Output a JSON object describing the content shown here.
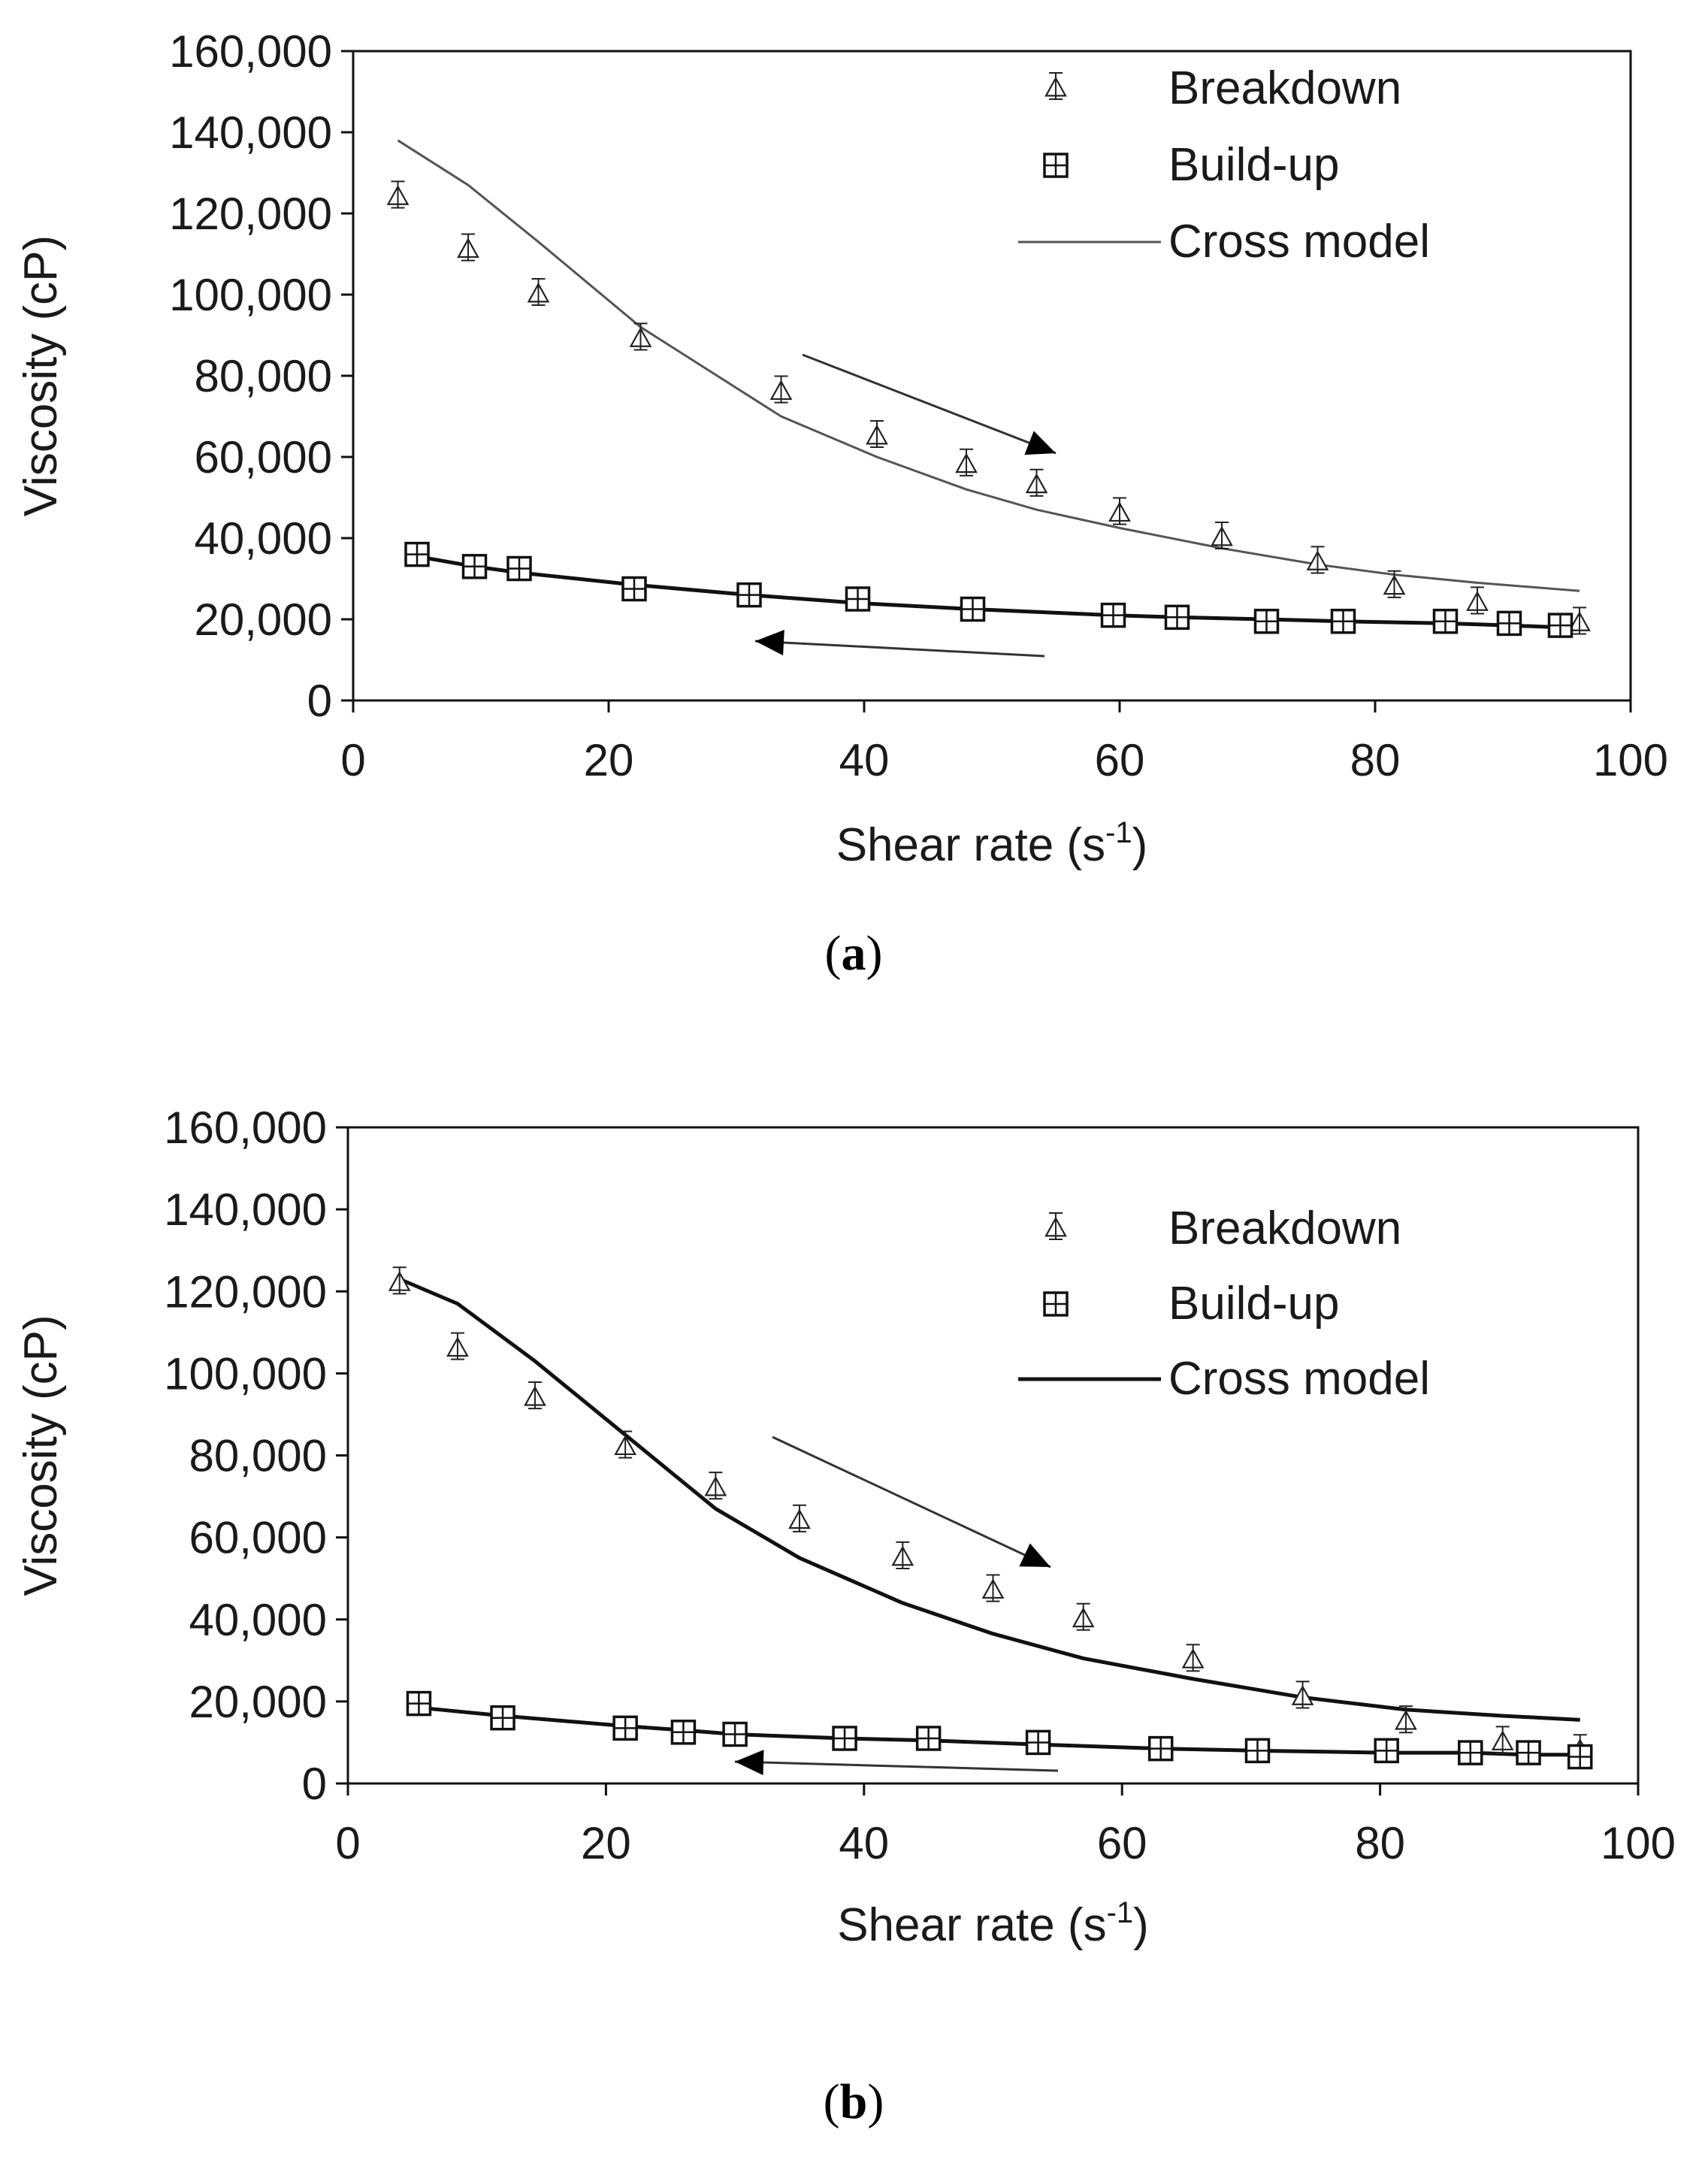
{
  "chart_data": [
    {
      "type": "scatter",
      "caption_letter": "a",
      "caption_open": "(",
      "caption_close": ")",
      "xlabel": "Shear rate (s",
      "xlabel_sup": "-1",
      "xlabel_close": ")",
      "ylabel": "Viscosity (cP)",
      "xlim": [
        0,
        100
      ],
      "ylim": [
        0,
        160000
      ],
      "xticks": [
        "0",
        "20",
        "40",
        "60",
        "80",
        "100"
      ],
      "yticks": [
        "0",
        "20,000",
        "40,000",
        "60,000",
        "80,000",
        "100,000",
        "120,000",
        "140,000",
        "160,000"
      ],
      "legend": [
        "Breakdown",
        "Build-up",
        "Cross model"
      ],
      "series": [
        {
          "name": "Breakdown",
          "marker": "triangle",
          "x": [
            3.5,
            9,
            14.5,
            22.5,
            33.5,
            41,
            48,
            53.5,
            60,
            68,
            75.5,
            81.5,
            88,
            96
          ],
          "y": [
            124000,
            111000,
            100000,
            89000,
            76000,
            65000,
            58000,
            53000,
            46000,
            40000,
            34000,
            28000,
            24000,
            19000
          ]
        },
        {
          "name": "Build-up",
          "marker": "square",
          "x": [
            5,
            9.5,
            13,
            22,
            31,
            39.5,
            48.5,
            59.5,
            64.5,
            71.5,
            77.5,
            85.5,
            90.5,
            94.5
          ],
          "y": [
            36000,
            33000,
            32500,
            27500,
            26000,
            25000,
            22500,
            21000,
            20500,
            19500,
            19500,
            19500,
            19000,
            18500
          ]
        },
        {
          "name": "Cross model",
          "line": "thin",
          "x": [
            3.5,
            9,
            14.5,
            22.5,
            33.5,
            41,
            48,
            53.5,
            60,
            68,
            75.5,
            81.5,
            88,
            96
          ],
          "y": [
            138000,
            127000,
            113000,
            92000,
            70000,
            60000,
            52000,
            47000,
            42500,
            37500,
            33500,
            31000,
            29000,
            27000
          ]
        },
        {
          "name": "Build-up fit",
          "line": "thick",
          "x": [
            5,
            9.5,
            13,
            22,
            31,
            39.5,
            48.5,
            59.5,
            64.5,
            71.5,
            77.5,
            85.5,
            90.5,
            94.5
          ],
          "y": [
            35500,
            33000,
            31500,
            28500,
            26000,
            24000,
            22500,
            21000,
            20500,
            20000,
            19500,
            19000,
            18500,
            18000
          ]
        }
      ]
    },
    {
      "type": "scatter",
      "caption_letter": "b",
      "caption_open": "(",
      "caption_close": ")",
      "xlabel": "Shear rate (s",
      "xlabel_sup": "-1",
      "xlabel_close": ")",
      "ylabel": "Viscosity (cP)",
      "xlim": [
        0,
        100
      ],
      "ylim": [
        0,
        160000
      ],
      "xticks": [
        "0",
        "20",
        "40",
        "60",
        "80",
        "100"
      ],
      "yticks": [
        "0",
        "20,000",
        "40,000",
        "60,000",
        "80,000",
        "100,000",
        "120,000",
        "140,000",
        "160,000"
      ],
      "legend": [
        "Breakdown",
        "Build-up",
        "Cross model"
      ],
      "series": [
        {
          "name": "Breakdown",
          "marker": "triangle",
          "x": [
            4,
            8.5,
            14.5,
            21.5,
            28.5,
            35,
            43,
            50,
            57,
            65.5,
            74,
            82,
            89.5,
            95.5
          ],
          "y": [
            122000,
            106000,
            94000,
            82000,
            72000,
            64000,
            55000,
            47000,
            40000,
            30000,
            21000,
            15000,
            10000,
            8000
          ]
        },
        {
          "name": "Build-up",
          "marker": "square",
          "x": [
            5.5,
            12,
            21.5,
            26,
            30,
            38.5,
            45,
            53.5,
            63,
            70.5,
            80.5,
            87,
            91.5,
            95.5
          ],
          "y": [
            19500,
            16000,
            13500,
            12500,
            12000,
            11000,
            11000,
            10000,
            8500,
            8000,
            8000,
            7500,
            7500,
            6500
          ]
        },
        {
          "name": "Cross model",
          "line": "thick",
          "x": [
            4,
            8.5,
            14.5,
            21.5,
            28.5,
            35,
            43,
            50,
            57,
            65.5,
            74,
            82,
            89.5,
            95.5
          ],
          "y": [
            123000,
            117000,
            103000,
            85000,
            67000,
            55000,
            44000,
            36500,
            30500,
            25500,
            21000,
            18000,
            16500,
            15500
          ]
        },
        {
          "name": "Build-up fit",
          "line": "thick",
          "x": [
            5.5,
            12,
            21.5,
            26,
            30,
            38.5,
            45,
            53.5,
            63,
            70.5,
            80.5,
            87,
            91.5,
            95.5
          ],
          "y": [
            18500,
            16500,
            14000,
            13000,
            12000,
            11000,
            10500,
            9500,
            8500,
            8000,
            7500,
            7500,
            7000,
            7000
          ]
        }
      ],
      "cross_model_weight": "thick"
    }
  ]
}
